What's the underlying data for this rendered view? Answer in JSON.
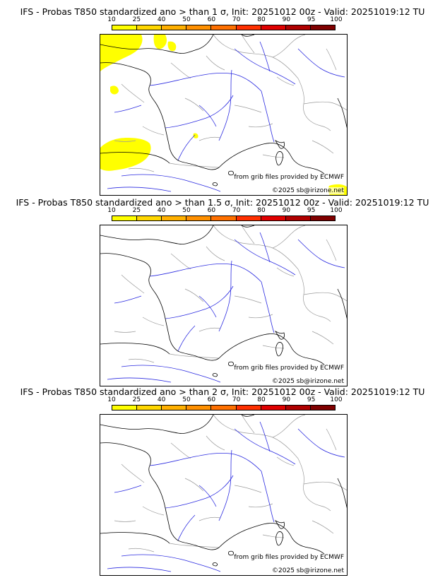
{
  "colorbar": {
    "ticks": [
      "10",
      "25",
      "40",
      "50",
      "60",
      "70",
      "80",
      "90",
      "95",
      "100"
    ],
    "colors": [
      "#ffff00",
      "#ffd700",
      "#ffb000",
      "#ff9000",
      "#ff7000",
      "#ff3000",
      "#e00000",
      "#b00000",
      "#800000"
    ]
  },
  "panels": [
    {
      "title": "IFS - Probas T850  standardized ano > than 1 σ, Init: 20251012 00z - Valid: 20251019:12 TU",
      "credit_source": "from grib files provided by ECMWF",
      "credit_copyright": "©2025 sb@irizone.net",
      "has_probability_area": true
    },
    {
      "title": "IFS - Probas T850  standardized ano > than 1.5 σ, Init: 20251012 00z - Valid: 20251019:12 TU",
      "credit_source": "from grib files provided by ECMWF",
      "credit_copyright": "©2025 sb@irizone.net",
      "has_probability_area": false
    },
    {
      "title": "IFS - Probas T850  standardized ano > than 2 σ, Init: 20251012 00z - Valid: 20251019:12 TU",
      "credit_source": "from grib files provided by ECMWF",
      "credit_copyright": "©2025 sb@irizone.net",
      "has_probability_area": false
    }
  ],
  "colors": {
    "coastline": "#000000",
    "rivers": "#2a2ae0",
    "borders": "#9a9a9a",
    "probability_fill": "#ffff00"
  }
}
